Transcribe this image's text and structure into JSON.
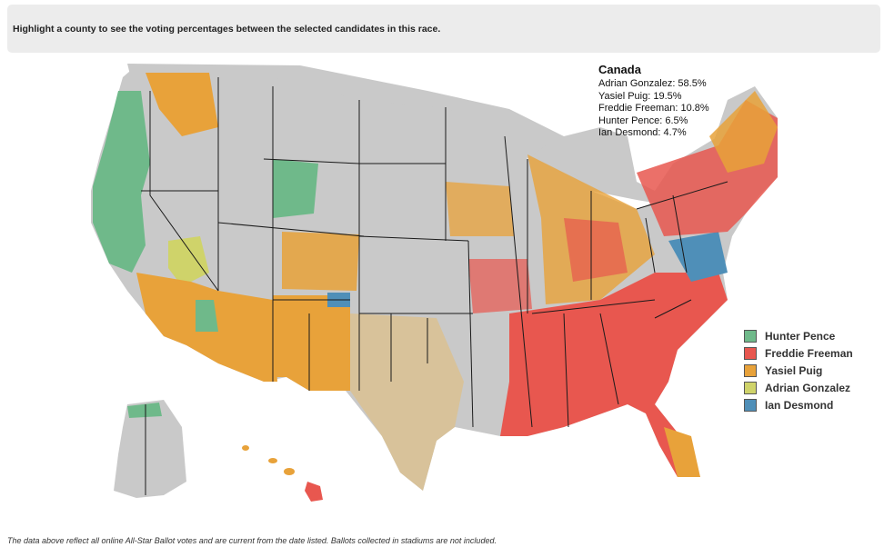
{
  "instruction": "Highlight a county to see the voting percentages between the selected candidates in this race.",
  "tooltip": {
    "title": "Canada",
    "rows": [
      "Adrian Gonzalez: 58.5%",
      "Yasiel Puig: 19.5%",
      "Freddie Freeman: 10.8%",
      "Hunter Pence: 6.5%",
      "Ian Desmond: 4.7%"
    ]
  },
  "legend": [
    {
      "label": "Hunter Pence",
      "color": "#6fb98a"
    },
    {
      "label": "Freddie Freeman",
      "color": "#e8574f"
    },
    {
      "label": "Yasiel Puig",
      "color": "#e8a23a"
    },
    {
      "label": "Adrian Gonzalez",
      "color": "#cfd36a"
    },
    {
      "label": "Ian Desmond",
      "color": "#4f8fb8"
    }
  ],
  "colors": {
    "no_data": "#c9c9c9",
    "state_border": "#1a1a1a"
  },
  "footnote": "The data above reflect all online All-Star Ballot votes and are current from the date listed. Ballots collected in stadiums are not included."
}
